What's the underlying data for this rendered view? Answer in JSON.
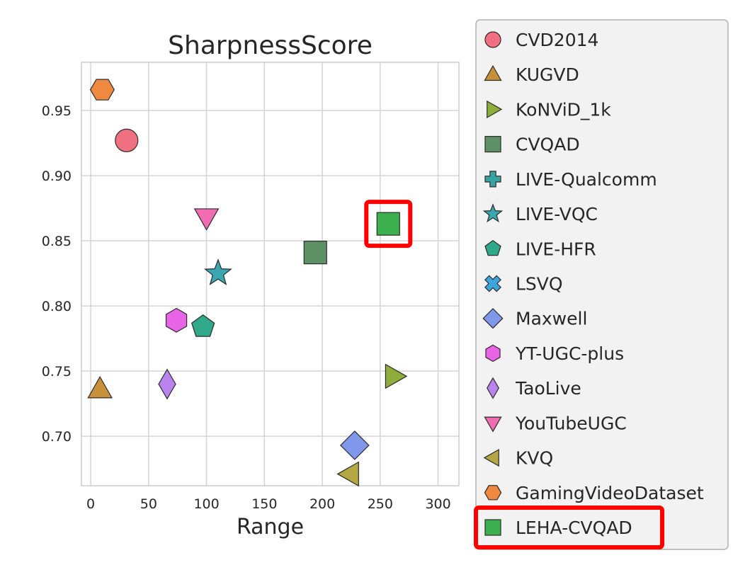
{
  "chart_data": {
    "type": "scatter",
    "title": "SharpnessScore",
    "xlabel": "Range",
    "ylabel": "",
    "xlim": [
      -8,
      318
    ],
    "ylim": [
      0.662,
      0.987
    ],
    "xticks": [
      0,
      50,
      100,
      150,
      200,
      250,
      300
    ],
    "yticks": [
      0.7,
      0.75,
      0.8,
      0.85,
      0.9,
      0.95
    ],
    "xtick_labels": [
      "0",
      "50",
      "100",
      "150",
      "200",
      "250",
      "300"
    ],
    "ytick_labels": [
      "0.70",
      "0.75",
      "0.80",
      "0.85",
      "0.90",
      "0.95"
    ],
    "grid": true,
    "legend_position": "outside-right",
    "series": [
      {
        "name": "CVD2014",
        "marker": "circle",
        "color": "#f0707f",
        "points": [
          [
            31,
            0.927
          ]
        ]
      },
      {
        "name": "KUGVD",
        "marker": "triangle-up",
        "color": "#c7913a",
        "points": [
          [
            8,
            0.736
          ]
        ]
      },
      {
        "name": "KoNViD_1k",
        "marker": "triangle-right",
        "color": "#8fad3a",
        "points": [
          [
            262,
            0.746
          ]
        ]
      },
      {
        "name": "CVQAD",
        "marker": "square",
        "color": "#5e9065",
        "points": [
          [
            194,
            0.841
          ]
        ]
      },
      {
        "name": "LIVE-Qualcomm",
        "marker": "plus",
        "color": "#36a3a0",
        "points": []
      },
      {
        "name": "LIVE-VQC",
        "marker": "star",
        "color": "#3aa6b0",
        "points": [
          [
            110,
            0.825
          ]
        ]
      },
      {
        "name": "LIVE-HFR",
        "marker": "pentagon",
        "color": "#2fa98a",
        "points": [
          [
            97,
            0.784
          ]
        ]
      },
      {
        "name": "LSVQ",
        "marker": "x",
        "color": "#3ea4dc",
        "points": []
      },
      {
        "name": "Maxwell",
        "marker": "diamond",
        "color": "#7f98ec",
        "points": [
          [
            228,
            0.693
          ]
        ]
      },
      {
        "name": "YT-UGC-plus",
        "marker": "hexagon",
        "color": "#e864e6",
        "points": [
          [
            74,
            0.789
          ]
        ]
      },
      {
        "name": "TaoLive",
        "marker": "thin-diamond",
        "color": "#bb83ee",
        "points": [
          [
            66,
            0.74
          ]
        ]
      },
      {
        "name": "YouTubeUGC",
        "marker": "triangle-down",
        "color": "#f26cb4",
        "points": [
          [
            100,
            0.868
          ]
        ]
      },
      {
        "name": "KVQ",
        "marker": "triangle-left",
        "color": "#b5a843",
        "points": [
          [
            224,
            0.671
          ]
        ]
      },
      {
        "name": "GamingVideoDataset",
        "marker": "hexagon-flat",
        "color": "#ef8940",
        "points": [
          [
            10,
            0.966
          ]
        ]
      },
      {
        "name": "LEHA-CVQAD",
        "marker": "square",
        "color": "#3cb04f",
        "points": [
          [
            257,
            0.863
          ]
        ]
      }
    ],
    "highlights": [
      {
        "series": "LEHA-CVQAD",
        "color": "#ff0000"
      }
    ]
  }
}
